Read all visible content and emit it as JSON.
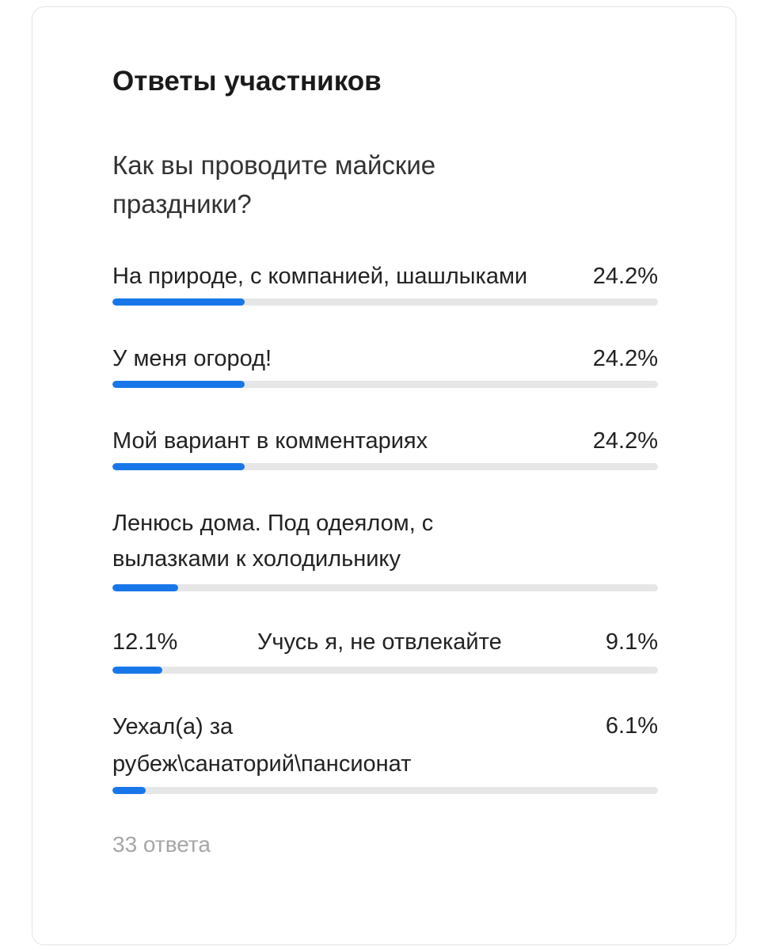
{
  "poll": {
    "heading": "Ответы участников",
    "question": "Как вы проводите майские праздники?",
    "accent_color": "#1877e8",
    "options": [
      {
        "label": "На природе, с компанией, шашлыками",
        "percent_text": "24.2%",
        "fraction": 0.242
      },
      {
        "label": "У меня огород!",
        "percent_text": "24.2%",
        "fraction": 0.242
      },
      {
        "label": "Мой вариант в комментариях",
        "percent_text": "24.2%",
        "fraction": 0.242
      },
      {
        "label": "Ленюсь дома. Под одеялом, с вылазками к холодильнику",
        "percent_text": "12.1%",
        "fraction": 0.121
      },
      {
        "label": "Учусь я, не отвлекайте",
        "percent_text": "9.1%",
        "fraction": 0.091
      },
      {
        "label": "Уехал(а) за рубеж\\санаторий\\пансионат",
        "percent_text": "6.1%",
        "fraction": 0.061
      }
    ],
    "footer": "33 ответа"
  }
}
